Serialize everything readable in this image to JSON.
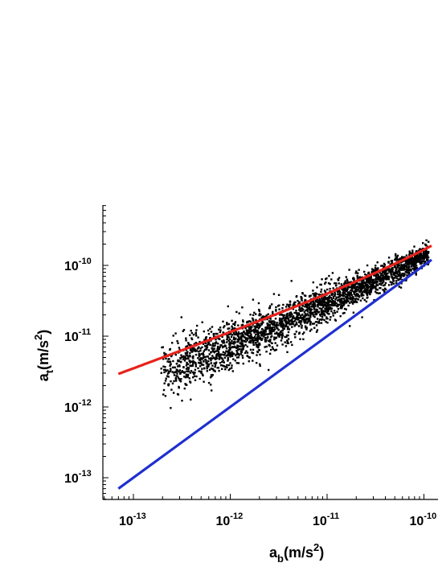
{
  "chart_data": {
    "type": "scatter",
    "title": "",
    "xlabel": {
      "base": "a",
      "sub": "b",
      "pre": "(m/s",
      "sup": "2",
      "post": ")"
    },
    "ylabel": {
      "base": "a",
      "sub": "t",
      "pre": "(m/s",
      "sup": "2",
      "post": ")"
    },
    "xscale": "log",
    "yscale": "log",
    "xlim": [
      5e-14,
      1.2e-10
    ],
    "ylim": [
      5e-14,
      7e-10
    ],
    "x_ticks": [
      {
        "value": 1e-13,
        "base": "10",
        "exp": "-13"
      },
      {
        "value": 1e-12,
        "base": "10",
        "exp": "-12"
      },
      {
        "value": 1e-11,
        "base": "10",
        "exp": "-11"
      },
      {
        "value": 1e-10,
        "base": "10",
        "exp": "-10"
      }
    ],
    "y_ticks": [
      {
        "value": 1e-13,
        "base": "10",
        "exp": "-13"
      },
      {
        "value": 1e-12,
        "base": "10",
        "exp": "-12"
      },
      {
        "value": 1e-11,
        "base": "10",
        "exp": "-11"
      },
      {
        "value": 1e-10,
        "base": "10",
        "exp": "-10"
      }
    ],
    "grid": false,
    "legend": "none",
    "series": [
      {
        "kind": "scatter",
        "color": "#000000",
        "marker": "square",
        "n_points": 2693,
        "trend": {
          "log_x_range": [
            -13.15,
            -9.95
          ],
          "relation": "log10 a_t ≈ 0.5·(log10 a_b + log10 a_0), converging to a_t ≈ a_b at high a_b",
          "a0": 1.2e-10,
          "log_scatter_dex_low": 0.3,
          "log_scatter_dex_high": 0.1
        }
      },
      {
        "kind": "line",
        "color": "#e8221b",
        "relation": "a_t = a_b / (1 - exp(-sqrt(a_b / a0)))",
        "a0": 1.2e-10,
        "x_range": [
          7e-14,
          1.2e-10
        ]
      },
      {
        "kind": "line",
        "color": "#1f2fd0",
        "relation": "a_t = a_b",
        "x_range": [
          7e-14,
          1.2e-10
        ]
      }
    ]
  }
}
